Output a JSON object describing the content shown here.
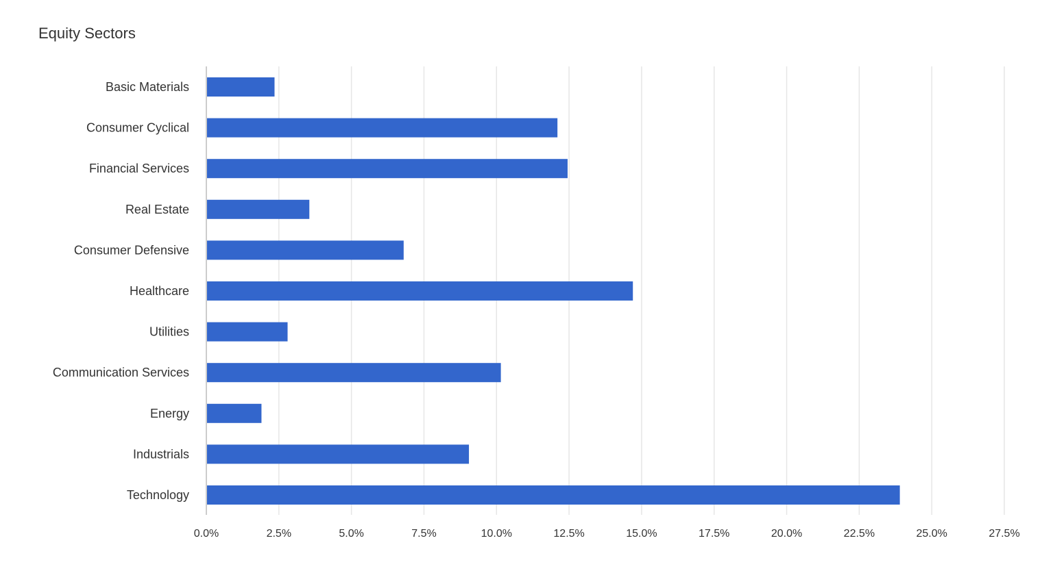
{
  "chart_data": {
    "type": "bar",
    "orientation": "horizontal",
    "title": "Equity Sectors",
    "xlabel": "",
    "ylabel": "",
    "categories": [
      "Basic Materials",
      "Consumer Cyclical",
      "Financial Services",
      "Real Estate",
      "Consumer Defensive",
      "Healthcare",
      "Utilities",
      "Communication Services",
      "Energy",
      "Industrials",
      "Technology"
    ],
    "values": [
      2.35,
      12.1,
      12.45,
      3.55,
      6.8,
      14.7,
      2.8,
      10.15,
      1.9,
      9.05,
      23.9
    ],
    "xlim": [
      0,
      27.5
    ],
    "xticks": [
      "0.0%",
      "2.5%",
      "5.0%",
      "7.5%",
      "10.0%",
      "12.5%",
      "15.0%",
      "17.5%",
      "20.0%",
      "22.5%",
      "25.0%",
      "27.5%"
    ],
    "xtick_values": [
      0,
      2.5,
      5,
      7.5,
      10,
      12.5,
      15,
      17.5,
      20,
      22.5,
      25,
      27.5
    ],
    "grid": true,
    "legend": "none",
    "bar_color": "#3366cc",
    "grid_color": "#e6e6e6",
    "axis_color": "#cccccc"
  }
}
